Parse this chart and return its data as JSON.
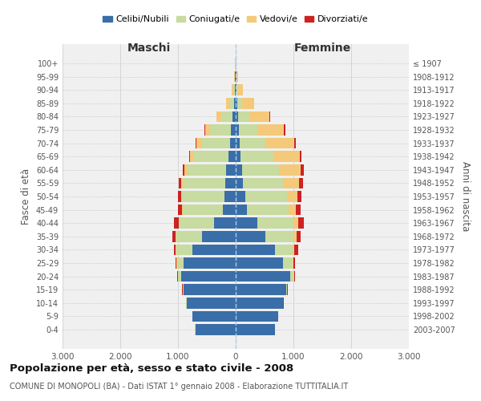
{
  "age_groups": [
    "0-4",
    "5-9",
    "10-14",
    "15-19",
    "20-24",
    "25-29",
    "30-34",
    "35-39",
    "40-44",
    "45-49",
    "50-54",
    "55-59",
    "60-64",
    "65-69",
    "70-74",
    "75-79",
    "80-84",
    "85-89",
    "90-94",
    "95-99",
    "100+"
  ],
  "birth_years": [
    "2003-2007",
    "1998-2002",
    "1993-1997",
    "1988-1992",
    "1983-1987",
    "1978-1982",
    "1973-1977",
    "1968-1972",
    "1963-1967",
    "1958-1962",
    "1953-1957",
    "1948-1952",
    "1943-1947",
    "1938-1942",
    "1933-1937",
    "1928-1932",
    "1923-1927",
    "1918-1922",
    "1913-1917",
    "1908-1912",
    "≤ 1907"
  ],
  "male_celibe": [
    700,
    750,
    850,
    900,
    950,
    900,
    750,
    580,
    380,
    220,
    200,
    180,
    160,
    130,
    100,
    80,
    50,
    30,
    20,
    10,
    5
  ],
  "male_coniugato": [
    5,
    5,
    5,
    20,
    50,
    120,
    280,
    450,
    600,
    700,
    730,
    730,
    680,
    600,
    500,
    370,
    200,
    80,
    25,
    8,
    2
  ],
  "male_vedovo": [
    0,
    0,
    0,
    1,
    2,
    2,
    5,
    5,
    10,
    15,
    20,
    30,
    50,
    60,
    80,
    80,
    80,
    60,
    25,
    5,
    1
  ],
  "male_divorziato": [
    0,
    0,
    2,
    5,
    10,
    20,
    40,
    60,
    80,
    60,
    50,
    40,
    30,
    15,
    10,
    10,
    5,
    2,
    1,
    0,
    0
  ],
  "female_celibe": [
    680,
    730,
    820,
    870,
    950,
    820,
    680,
    520,
    380,
    200,
    170,
    130,
    110,
    90,
    70,
    60,
    40,
    25,
    15,
    8,
    3
  ],
  "female_coniugata": [
    5,
    5,
    5,
    20,
    60,
    160,
    310,
    480,
    620,
    720,
    720,
    690,
    640,
    560,
    450,
    330,
    200,
    90,
    30,
    10,
    2
  ],
  "female_vedova": [
    0,
    0,
    1,
    3,
    8,
    15,
    30,
    50,
    80,
    120,
    180,
    280,
    380,
    460,
    500,
    450,
    350,
    200,
    80,
    20,
    3
  ],
  "female_divorziata": [
    0,
    0,
    2,
    8,
    15,
    30,
    60,
    80,
    100,
    90,
    70,
    60,
    50,
    30,
    20,
    15,
    8,
    3,
    2,
    0,
    0
  ],
  "colors": {
    "celibe": "#3a6ea8",
    "coniugato": "#c8dba0",
    "vedovo": "#f5c97a",
    "divorziato": "#cc2222"
  },
  "title": "Popolazione per età, sesso e stato civile - 2008",
  "subtitle": "COMUNE DI MONOPOLI (BA) - Dati ISTAT 1° gennaio 2008 - Elaborazione TUTTITALIA.IT",
  "xlabel_left": "Maschi",
  "xlabel_right": "Femmine",
  "ylabel_left": "Fasce di età",
  "ylabel_right": "Anni di nascita",
  "xlim": 3000,
  "bg_color": "#f0f0f0",
  "grid_color": "#d0d0d0"
}
